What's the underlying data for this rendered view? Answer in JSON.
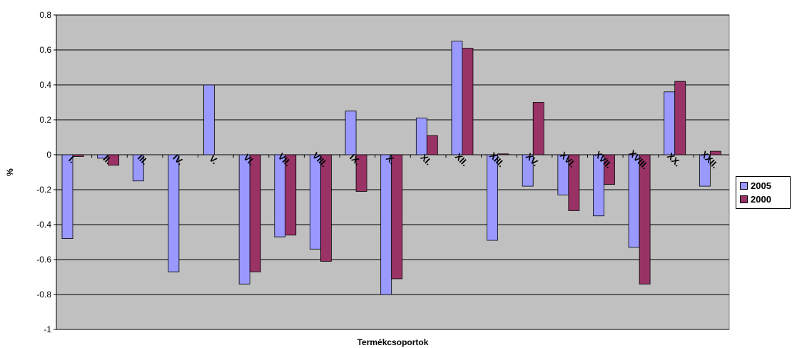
{
  "chart_data": {
    "type": "bar",
    "categories": [
      "I.",
      "II.",
      "III.",
      "IV.",
      "V.",
      "VI.",
      "VII.",
      "VIII.",
      "IX.",
      "X.",
      "XI.",
      "XII.",
      "XIII.",
      "XV.",
      "XVI.",
      "XVII.",
      "XVIII.",
      "XX.",
      "XXII."
    ],
    "series": [
      {
        "name": "2005",
        "color": "#9999FF",
        "values": [
          -0.48,
          -0.02,
          -0.15,
          -0.67,
          0.4,
          -0.74,
          -0.47,
          -0.54,
          0.25,
          -0.8,
          0.21,
          0.65,
          -0.49,
          -0.18,
          -0.23,
          -0.35,
          -0.53,
          0.36,
          -0.18
        ]
      },
      {
        "name": "2000",
        "color": "#993366",
        "values": [
          -0.01,
          -0.06,
          null,
          null,
          null,
          -0.67,
          -0.46,
          -0.61,
          -0.21,
          -0.71,
          0.11,
          0.61,
          0.005,
          0.3,
          -0.32,
          -0.17,
          -0.74,
          0.42,
          0.02
        ]
      }
    ],
    "xlabel": "Termékcsoportok",
    "ylabel": "%",
    "ylim": [
      -1,
      0.8
    ],
    "yticks": [
      "0.8",
      "0.6",
      "0.4",
      "0.2",
      "0",
      "-0.2",
      "-0.4",
      "-0.6",
      "-0.8",
      "-1"
    ],
    "grid": true,
    "legend_position": "right",
    "plot_background": "#C0C0C0"
  }
}
